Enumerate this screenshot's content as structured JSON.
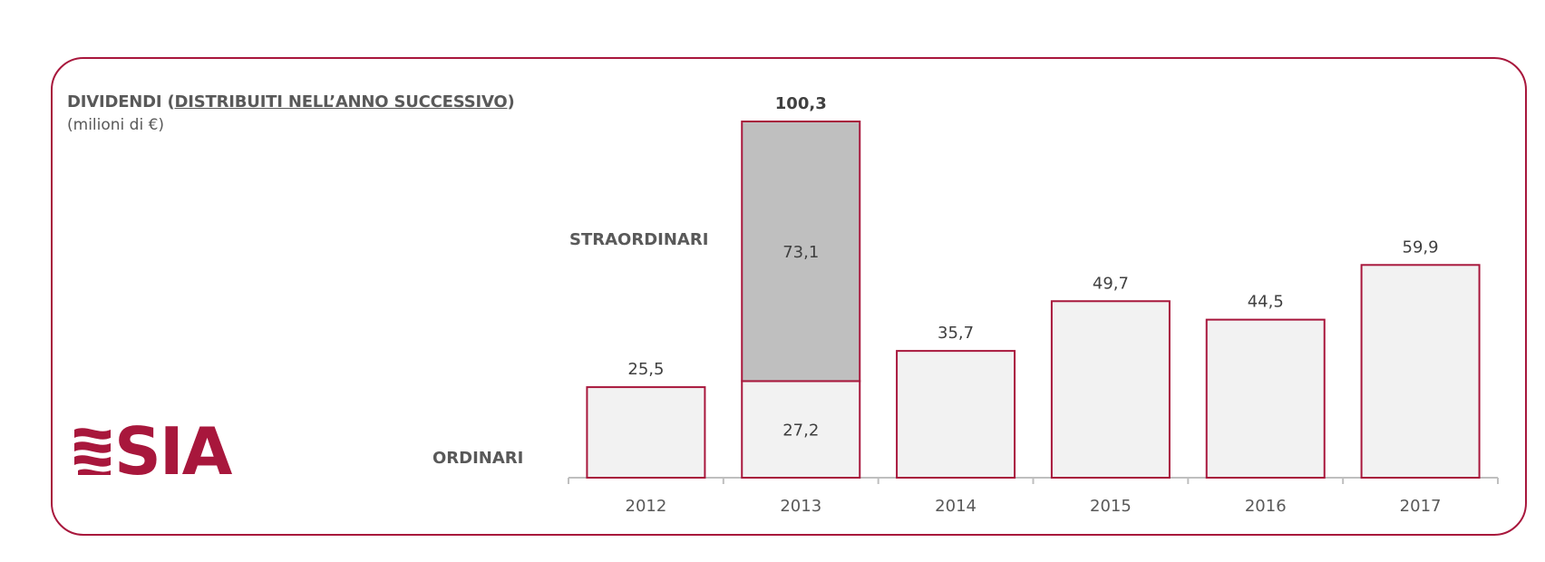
{
  "header": {
    "title_prefix": "DIVIDENDI (",
    "title_underlined": "DISTRIBUITI NELL’ANNO SUCCESSIVO",
    "title_suffix": ")",
    "subtitle": "(milioni di €)"
  },
  "logo": {
    "text": "SIA",
    "icon": "sia-wave-logo-icon"
  },
  "colors": {
    "accent": "#a8173c",
    "ordinari_fill": "#f2f2f2",
    "straordinari_fill": "#bfbfbf",
    "axis": "#bfbfbf",
    "text": "#404040"
  },
  "chart_data": {
    "type": "bar",
    "stacked": true,
    "categories": [
      "2012",
      "2013",
      "2014",
      "2015",
      "2016",
      "2017"
    ],
    "series": [
      {
        "name": "ORDINARI",
        "values": [
          25.5,
          27.2,
          35.7,
          49.7,
          44.5,
          59.9
        ]
      },
      {
        "name": "STRAORDINARI",
        "values": [
          0,
          73.1,
          0,
          0,
          0,
          0
        ]
      }
    ],
    "segment_labels": [
      [
        "25,5",
        "27,2",
        "35,7",
        "49,7",
        "44,5",
        "59,9"
      ],
      [
        "",
        "73,1",
        "",
        "",
        "",
        ""
      ]
    ],
    "total_labels": [
      "",
      "100,3",
      "",
      "",
      "",
      ""
    ],
    "title": "DIVIDENDI (DISTRIBUITI NELL’ANNO SUCCESSIVO)",
    "ylabel": "(milioni di €)",
    "ylim": [
      0,
      100.3
    ],
    "grid": false,
    "legend": "left"
  }
}
